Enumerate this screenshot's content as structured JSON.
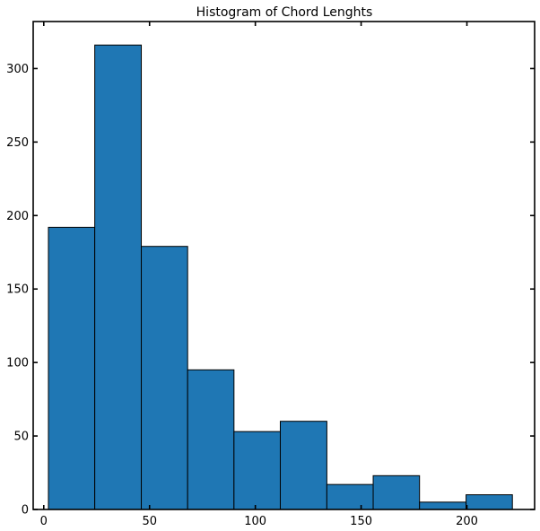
{
  "chart_data": {
    "type": "bar",
    "title": "Histogram of Chord Lenghts",
    "xlabel": "",
    "ylabel": "",
    "bin_edges": [
      2.2,
      24.1,
      46.1,
      68.0,
      89.9,
      111.8,
      133.8,
      155.7,
      177.6,
      199.6,
      221.5
    ],
    "values": [
      192,
      316,
      179,
      95,
      53,
      60,
      17,
      23,
      5,
      10
    ],
    "xlim": [
      -5,
      232
    ],
    "ylim": [
      0,
      332
    ],
    "xticks": [
      0,
      50,
      100,
      150,
      200
    ],
    "yticks": [
      0,
      50,
      100,
      150,
      200,
      250,
      300
    ],
    "grid": false,
    "bar_color": "#1f77b4",
    "edge_color": "#000000"
  }
}
